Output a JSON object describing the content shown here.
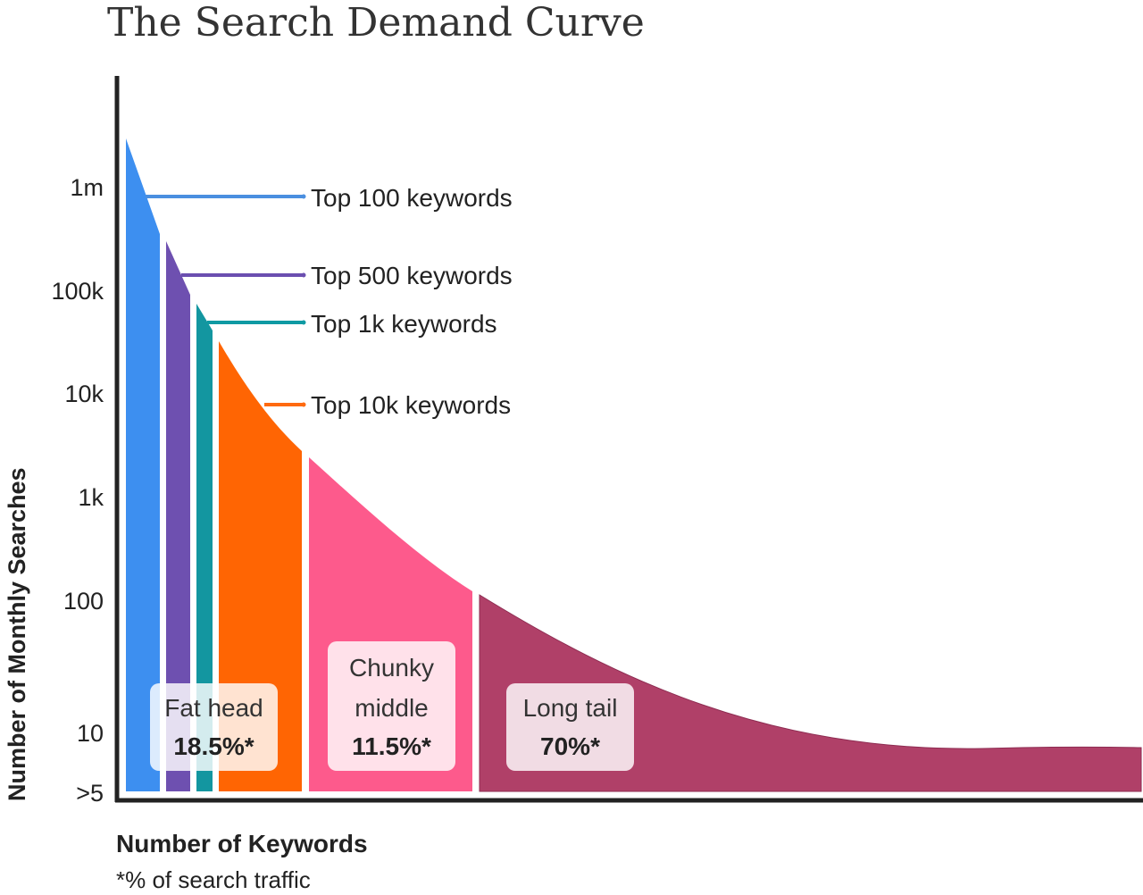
{
  "chart_data": {
    "type": "area",
    "title": "The Search Demand Curve",
    "xlabel": "Number of Keywords",
    "ylabel": "Number of Monthly Searches",
    "footnote": "*% of search traffic",
    "y_scale": "log",
    "y_ticks": [
      "1m",
      "100k",
      "10k",
      "1k",
      "100",
      "10",
      ">5"
    ],
    "y_tick_values": [
      1000000,
      100000,
      10000,
      1000,
      100,
      10,
      5
    ],
    "callouts": [
      {
        "label": "Top 100 keywords",
        "color": "#4a8fe0"
      },
      {
        "label": "Top 500 keywords",
        "color": "#6b4fb0"
      },
      {
        "label": "Top 1k keywords",
        "color": "#0f9aa3"
      },
      {
        "label": "Top 10k keywords",
        "color": "#ff6a10"
      }
    ],
    "segments": [
      {
        "name": "Top 100",
        "color": "#3d8ff0"
      },
      {
        "name": "Top 500",
        "color": "#6e50b0"
      },
      {
        "name": "Top 1k",
        "color": "#1396a0"
      },
      {
        "name": "Top 10k",
        "color": "#ff6503"
      },
      {
        "name": "Chunky middle",
        "color": "#fd5a8c"
      },
      {
        "name": "Long tail",
        "color": "#b04068"
      }
    ],
    "groups": [
      {
        "line1": "Fat head",
        "line2": "",
        "percent": "18.5%*",
        "share": 18.5
      },
      {
        "line1": "Chunky",
        "line2": "middle",
        "percent": "11.5%*",
        "share": 11.5
      },
      {
        "line1": "Long tail",
        "line2": "",
        "percent": "70%*",
        "share": 70
      }
    ]
  }
}
